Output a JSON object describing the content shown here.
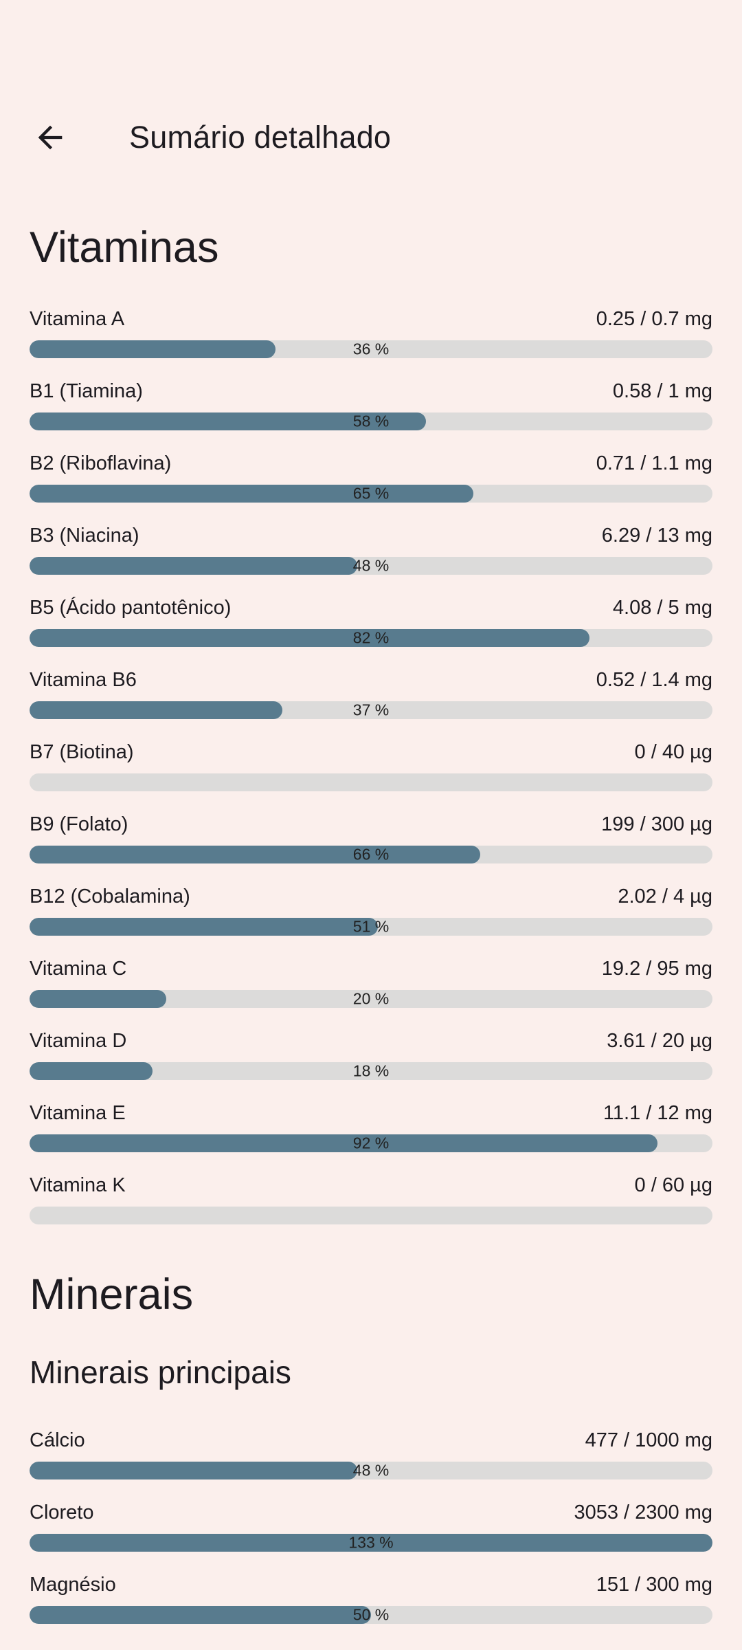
{
  "theme": {
    "background": "#FBEFEC",
    "bar_track": "#DCDBDA",
    "bar_fill": "#587B8E",
    "text_primary": "#1D1B20"
  },
  "header": {
    "title": "Sumário detalhado",
    "back_icon": "arrow-back-icon"
  },
  "sections": [
    {
      "title": "Vitaminas",
      "items": [
        {
          "name": "Vitamina A",
          "amount": "0.25 / 0.7 mg",
          "percent": 36,
          "percent_label": "36 %"
        },
        {
          "name": "B1 (Tiamina)",
          "amount": "0.58 / 1 mg",
          "percent": 58,
          "percent_label": "58 %"
        },
        {
          "name": "B2 (Riboflavina)",
          "amount": "0.71 / 1.1 mg",
          "percent": 65,
          "percent_label": "65 %"
        },
        {
          "name": "B3 (Niacina)",
          "amount": "6.29 / 13 mg",
          "percent": 48,
          "percent_label": "48 %"
        },
        {
          "name": "B5 (Ácido pantotênico)",
          "amount": "4.08 / 5 mg",
          "percent": 82,
          "percent_label": "82 %"
        },
        {
          "name": "Vitamina B6",
          "amount": "0.52 / 1.4 mg",
          "percent": 37,
          "percent_label": "37 %"
        },
        {
          "name": "B7 (Biotina)",
          "amount": "0 / 40 µg",
          "percent": 0,
          "percent_label": ""
        },
        {
          "name": "B9 (Folato)",
          "amount": "199 / 300 µg",
          "percent": 66,
          "percent_label": "66 %"
        },
        {
          "name": "B12 (Cobalamina)",
          "amount": "2.02 / 4 µg",
          "percent": 51,
          "percent_label": "51 %"
        },
        {
          "name": "Vitamina C",
          "amount": "19.2 / 95 mg",
          "percent": 20,
          "percent_label": "20 %"
        },
        {
          "name": "Vitamina D",
          "amount": "3.61 / 20 µg",
          "percent": 18,
          "percent_label": "18 %"
        },
        {
          "name": "Vitamina E",
          "amount": "11.1 / 12 mg",
          "percent": 92,
          "percent_label": "92 %"
        },
        {
          "name": "Vitamina K",
          "amount": "0 / 60 µg",
          "percent": 0,
          "percent_label": ""
        }
      ]
    },
    {
      "title": "Minerais",
      "subtitle": "Minerais principais",
      "items": [
        {
          "name": "Cálcio",
          "amount": "477 / 1000 mg",
          "percent": 48,
          "percent_label": "48 %"
        },
        {
          "name": "Cloreto",
          "amount": "3053 / 2300 mg",
          "percent": 133,
          "percent_label": "133 %"
        },
        {
          "name": "Magnésio",
          "amount": "151 / 300 mg",
          "percent": 50,
          "percent_label": "50 %"
        }
      ]
    }
  ]
}
